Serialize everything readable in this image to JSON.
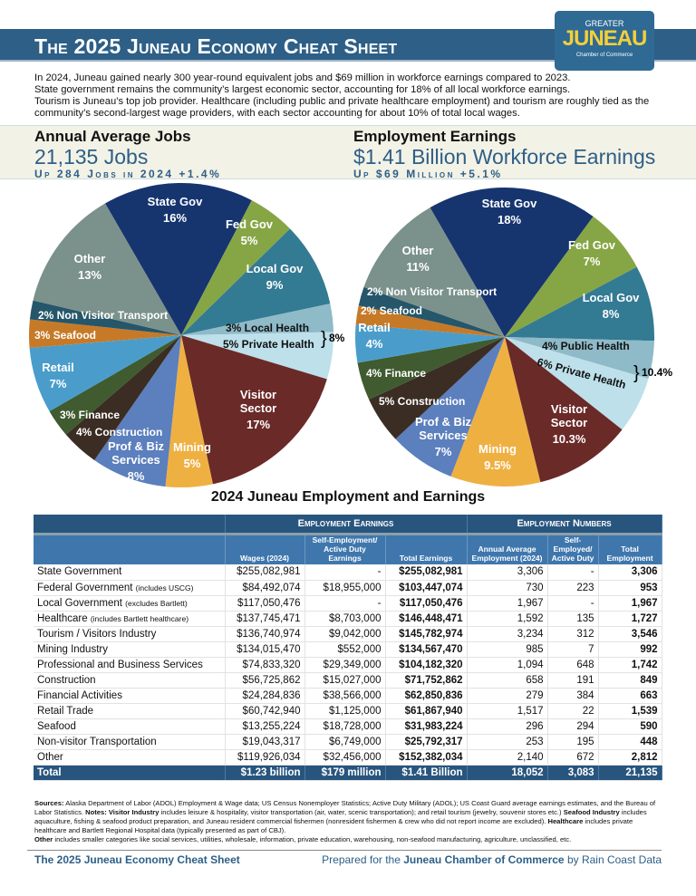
{
  "header": {
    "title": "The 2025 Juneau Economy Cheat Sheet",
    "logo": {
      "top": "GREATER",
      "main": "JUNEAU",
      "bottom": "Chamber of Commerce"
    }
  },
  "intro": [
    "In 2024, Juneau gained nearly 300 year-round equivalent jobs and $69 million in workforce earnings compared to 2023.",
    "State government remains the community’s largest economic sector, accounting for 18% of all local workforce earnings.",
    "Tourism is Juneau’s top job provider. Healthcare (including public and private healthcare employment) and tourism are roughly tied as the community’s second-largest wage providers, with each sector accounting for about 10% of total local wages."
  ],
  "jobs": {
    "heading": "Annual Average Jobs",
    "value": "21,135 Jobs",
    "sub": "Up 284 Jobs in 2024 +1.4%"
  },
  "earnings": {
    "heading": "Employment Earnings",
    "value": "$1.41 Billion Workforce Earnings",
    "sub": "Up $69 Million +5.1%"
  },
  "pie_section_title": "2024 Juneau Employment and Earnings",
  "chart_data": [
    {
      "type": "pie",
      "title": "",
      "slices": [
        {
          "label": "State Gov",
          "value": 16,
          "color": "#16356f"
        },
        {
          "label": "Fed Gov",
          "value": 5,
          "color": "#86a646"
        },
        {
          "label": "Local Gov",
          "value": 9,
          "color": "#337a93"
        },
        {
          "label": "Local Health",
          "value": 3,
          "color": "#8fbac8"
        },
        {
          "label": "Private Health",
          "value": 5,
          "color": "#bde0ea"
        },
        {
          "label": "Visitor Sector",
          "value": 17,
          "color": "#6a2a28"
        },
        {
          "label": "Mining",
          "value": 5,
          "color": "#efb042"
        },
        {
          "label": "Prof & Biz Services",
          "value": 8,
          "color": "#5c7fbd"
        },
        {
          "label": "Construction",
          "value": 4,
          "color": "#3b2d24"
        },
        {
          "label": "Finance",
          "value": 3,
          "color": "#3f5b2f"
        },
        {
          "label": "Retail",
          "value": 7,
          "color": "#4a9dcb"
        },
        {
          "label": "Seafood",
          "value": 3,
          "color": "#c67a28"
        },
        {
          "label": "Non Visitor Transport",
          "value": 2,
          "color": "#25566a"
        },
        {
          "label": "Other",
          "value": 13,
          "color": "#7b918b"
        }
      ],
      "annotation": "8%"
    },
    {
      "type": "pie",
      "title": "",
      "slices": [
        {
          "label": "State Gov",
          "value": 18,
          "color": "#16356f"
        },
        {
          "label": "Fed Gov",
          "value": 7,
          "color": "#86a646"
        },
        {
          "label": "Local Gov",
          "value": 8,
          "color": "#337a93"
        },
        {
          "label": "Public Health",
          "value": 4,
          "color": "#8fbac8"
        },
        {
          "label": "Private Health",
          "value": 6,
          "color": "#bde0ea"
        },
        {
          "label": "Visitor Sector",
          "value": 10.3,
          "color": "#6a2a28"
        },
        {
          "label": "Mining",
          "value": 9.5,
          "color": "#efb042"
        },
        {
          "label": "Prof & Biz Services",
          "value": 7,
          "color": "#5c7fbd"
        },
        {
          "label": "Construction",
          "value": 5,
          "color": "#3b2d24"
        },
        {
          "label": "Finance",
          "value": 4,
          "color": "#3f5b2f"
        },
        {
          "label": "Retail",
          "value": 4,
          "color": "#4a9dcb"
        },
        {
          "label": "Seafood",
          "value": 2,
          "color": "#c67a28"
        },
        {
          "label": "Non Visitor Transport",
          "value": 2,
          "color": "#25566a"
        },
        {
          "label": "Other",
          "value": 11,
          "color": "#7b918b"
        }
      ],
      "annotation": "10.4%"
    }
  ],
  "table": {
    "group_headers": [
      "Employment Earnings",
      "Employment Numbers"
    ],
    "columns": [
      "Wages (2024)",
      "Self-Employment/ Active Duty Earnings",
      "Total Earnings",
      "Annual Average Employment (2024)",
      "Self-Employed/ Active Duty",
      "Total Employment"
    ],
    "rows": [
      {
        "name": "State Government",
        "note": "",
        "cells": [
          "$255,082,981",
          "-",
          "$255,082,981",
          "3,306",
          "-",
          "3,306"
        ]
      },
      {
        "name": "Federal Government",
        "note": "(includes USCG)",
        "cells": [
          "$84,492,074",
          "$18,955,000",
          "$103,447,074",
          "730",
          "223",
          "953"
        ]
      },
      {
        "name": "Local Government",
        "note": "(excludes Bartlett)",
        "cells": [
          "$117,050,476",
          "-",
          "$117,050,476",
          "1,967",
          "-",
          "1,967"
        ]
      },
      {
        "name": "Healthcare",
        "note": "(includes Bartlett healthcare)",
        "cells": [
          "$137,745,471",
          "$8,703,000",
          "$146,448,471",
          "1,592",
          "135",
          "1,727"
        ]
      },
      {
        "name": "Tourism / Visitors Industry",
        "note": "",
        "cells": [
          "$136,740,974",
          "$9,042,000",
          "$145,782,974",
          "3,234",
          "312",
          "3,546"
        ]
      },
      {
        "name": "Mining Industry",
        "note": "",
        "cells": [
          "$134,015,470",
          "$552,000",
          "$134,567,470",
          "985",
          "7",
          "992"
        ]
      },
      {
        "name": "Professional and Business Services",
        "note": "",
        "cells": [
          "$74,833,320",
          "$29,349,000",
          "$104,182,320",
          "1,094",
          "648",
          "1,742"
        ]
      },
      {
        "name": "Construction",
        "note": "",
        "cells": [
          "$56,725,862",
          "$15,027,000",
          "$71,752,862",
          "658",
          "191",
          "849"
        ]
      },
      {
        "name": "Financial Activities",
        "note": "",
        "cells": [
          "$24,284,836",
          "$38,566,000",
          "$62,850,836",
          "279",
          "384",
          "663"
        ]
      },
      {
        "name": "Retail Trade",
        "note": "",
        "cells": [
          "$60,742,940",
          "$1,125,000",
          "$61,867,940",
          "1,517",
          "22",
          "1,539"
        ]
      },
      {
        "name": "Seafood",
        "note": "",
        "cells": [
          "$13,255,224",
          "$18,728,000",
          "$31,983,224",
          "296",
          "294",
          "590"
        ]
      },
      {
        "name": "Non-visitor Transportation",
        "note": "",
        "cells": [
          "$19,043,317",
          "$6,749,000",
          "$25,792,317",
          "253",
          "195",
          "448"
        ]
      },
      {
        "name": "Other",
        "note": "",
        "cells": [
          "$119,926,034",
          "$32,456,000",
          "$152,382,034",
          "2,140",
          "672",
          "2,812"
        ]
      }
    ],
    "total": {
      "name": "Total",
      "cells": [
        "$1.23 billion",
        "$179 million",
        "$1.41 Billion",
        "18,052",
        "3,083",
        "21,135"
      ]
    }
  },
  "sources": {
    "l1": "Sources:",
    "t1": " Alaska Department of Labor (ADOL) Employment & Wage data; US Census Nonemployer Statistics; Active Duty Military (ADOL); US Coast Guard average earnings estimates, and the Bureau of Labor Statistics.  ",
    "l2": "Notes: Visitor Industry",
    "t2": " includes leisure & hospitality, visitor transportation (air, water, scenic transportation); and retail tourism (jewelry, souvenir stores etc.)  ",
    "l3": "Seafood Industry",
    "t3": " includes aquaculture, fishing & seafood product preparation, and Juneau resident commercial fishermen (nonresident fishermen & crew who did not report income are excluded). ",
    "l4": "Healthcare",
    "t4": " includes private healthcare and Bartlett Regional Hospital data (typically presented as part of CBJ).",
    "l5": "Other",
    "t5": " includes smaller categories like social services, utilities, wholesale, information, private education, warehousing, non-seafood manufacturing, agriculture, unclassified, etc."
  },
  "footer": {
    "left": "The 2025 Juneau Economy Cheat Sheet",
    "right_pre": "Prepared for the ",
    "right_bold": "Juneau Chamber of Commerce",
    "right_post": " by Rain Coast Data"
  }
}
